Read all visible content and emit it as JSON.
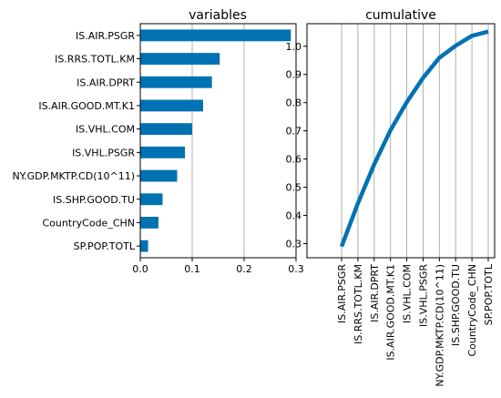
{
  "chart_data": [
    {
      "type": "bar",
      "orientation": "horizontal",
      "title": "variables",
      "categories": [
        "IS.AIR.PSGR",
        "IS.RRS.TOTL.KM",
        "IS.AIR.DPRT",
        "IS.AIR.GOOD.MT.K1",
        "IS.VHL.COM",
        "IS.VHL.PSGR",
        "NY.GDP.MKTP.CD(10^11)",
        "IS.SHP.GOOD.TU",
        "CountryCode_CHN",
        "SP.POP.TOTL"
      ],
      "values": [
        0.29,
        0.153,
        0.138,
        0.121,
        0.1,
        0.086,
        0.071,
        0.043,
        0.035,
        0.015
      ],
      "xlim": [
        0.0,
        0.3
      ],
      "xticks": [
        "0.0",
        "0.1",
        "0.2",
        "0.3"
      ],
      "grid": "vertical",
      "color": "#0072b2"
    },
    {
      "type": "line",
      "title": "cumulative",
      "categories": [
        "IS.AIR.PSGR",
        "IS.RRS.TOTL.KM",
        "IS.AIR.DPRT",
        "IS.AIR.GOOD.MT.K1",
        "IS.VHL.COM",
        "IS.VHL.PSGR",
        "NY.GDP.MKTP.CD(10^11)",
        "IS.SHP.GOOD.TU",
        "CountryCode_CHN",
        "SP.POP.TOTL"
      ],
      "values": [
        0.29,
        0.443,
        0.581,
        0.702,
        0.802,
        0.888,
        0.959,
        1.002,
        1.037,
        1.052
      ],
      "ylim": [
        0.25,
        1.08
      ],
      "yticks": [
        "0.3",
        "0.4",
        "0.5",
        "0.6",
        "0.7",
        "0.8",
        "0.9",
        "1.0"
      ],
      "grid": "vertical",
      "color": "#0072b2"
    }
  ]
}
